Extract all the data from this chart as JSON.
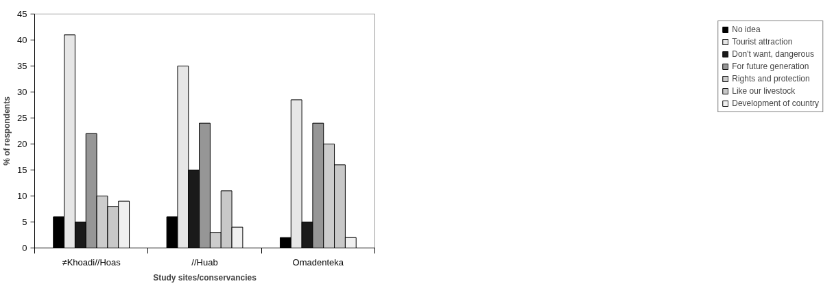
{
  "chart_data": {
    "type": "bar",
    "xlabel": "Study sites/conservancies",
    "ylabel": "% of respondents",
    "categories": [
      "≠Khoadi//Hoas",
      "//Huab",
      "Omadenteka"
    ],
    "series": [
      {
        "name": "No idea",
        "color": "#000000",
        "values": [
          6,
          6,
          2
        ]
      },
      {
        "name": "Tourist attraction",
        "color": "#e6e6e6",
        "values": [
          41,
          35,
          28.5
        ]
      },
      {
        "name": "Don't want, dangerous",
        "color": "#1a1a1a",
        "values": [
          5,
          15,
          5
        ]
      },
      {
        "name": "For future generation",
        "color": "#969696",
        "values": [
          22,
          24,
          24
        ]
      },
      {
        "name": "Rights and protection",
        "color": "#cccccc",
        "values": [
          10,
          3,
          20
        ]
      },
      {
        "name": "Like our livestock",
        "color": "#c8c8c8",
        "values": [
          8,
          11,
          16
        ]
      },
      {
        "name": "Development of country",
        "color": "#f0f0f0",
        "values": [
          9,
          4,
          2
        ]
      }
    ],
    "ylim": [
      0,
      45
    ],
    "yticks": [
      0,
      5,
      10,
      15,
      20,
      25,
      30,
      35,
      40,
      45
    ],
    "grid": false,
    "legend": "right"
  }
}
